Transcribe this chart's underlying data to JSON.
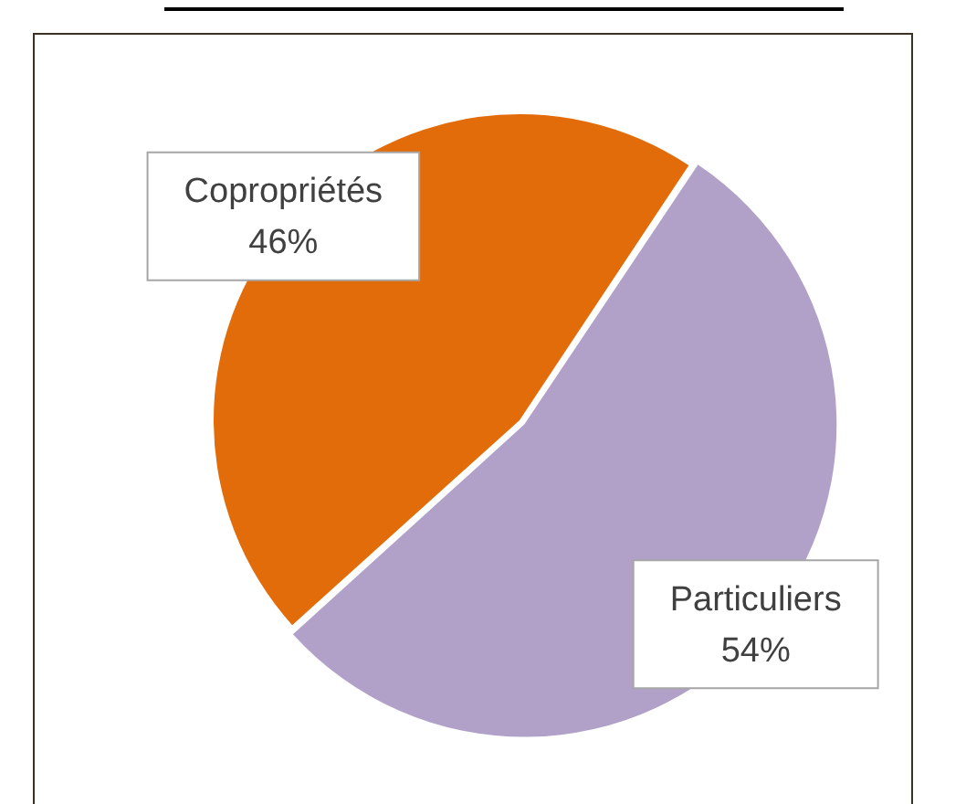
{
  "chart_data": {
    "type": "pie",
    "categories": [
      "Copropriétés",
      "Particuliers"
    ],
    "values": [
      46,
      54
    ],
    "colors": [
      "#e36c0a",
      "#b1a0c7"
    ],
    "value_labels": [
      "46%",
      "54%"
    ],
    "legend": false
  }
}
